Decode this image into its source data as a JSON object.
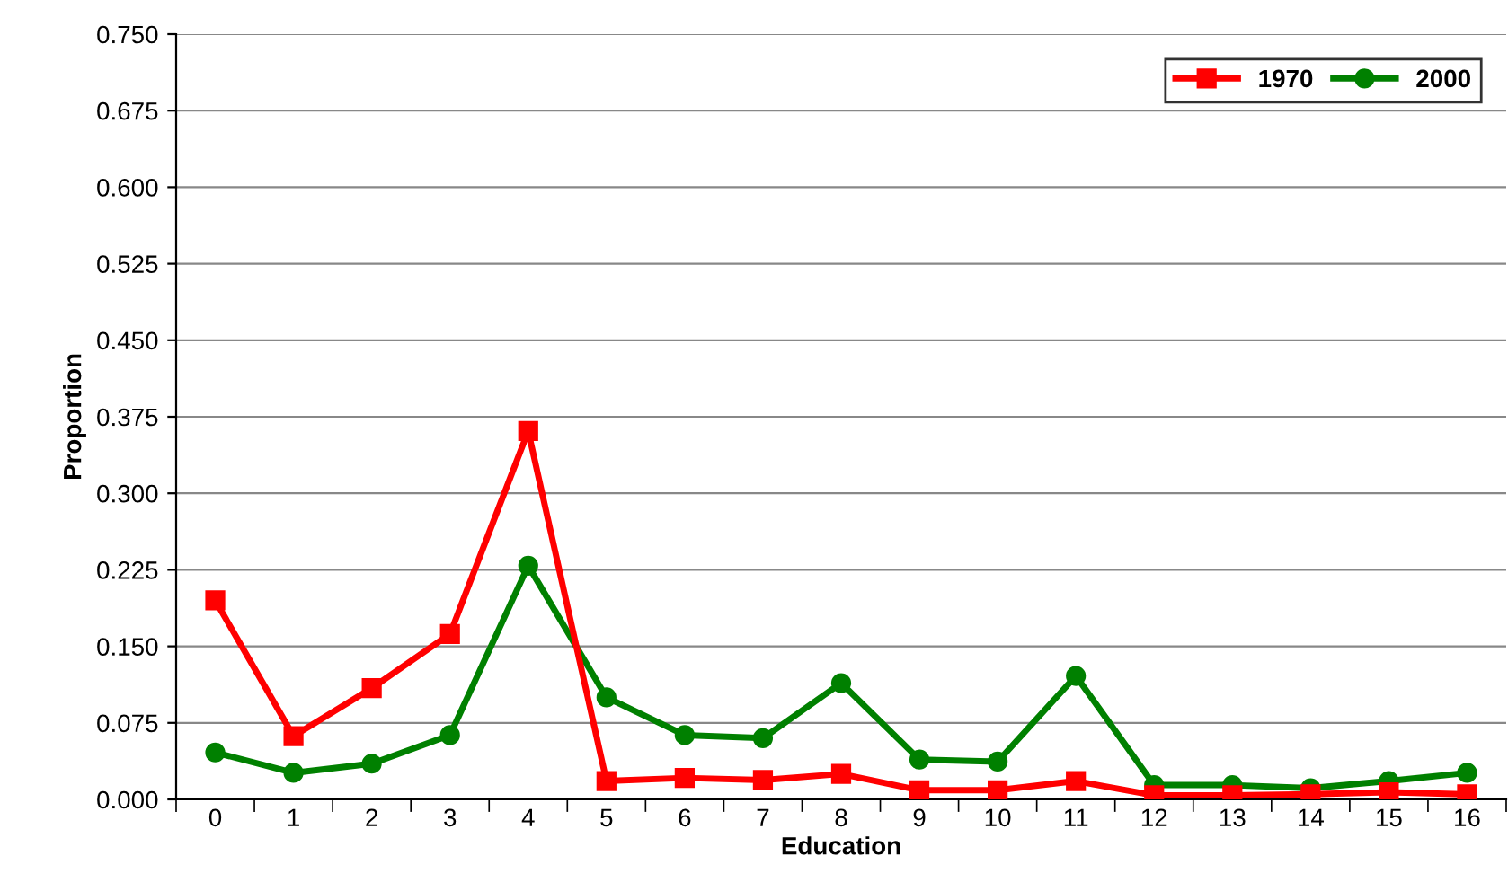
{
  "chart_data": {
    "type": "line",
    "xlabel": "Education",
    "ylabel": "Proportion",
    "categories": [
      "0",
      "1",
      "2",
      "3",
      "4",
      "5",
      "6",
      "7",
      "8",
      "9",
      "10",
      "11",
      "12",
      "13",
      "14",
      "15",
      "16"
    ],
    "series": [
      {
        "name": "1970",
        "color": "#ff0000",
        "marker": "square",
        "values": [
          0.195,
          0.062,
          0.109,
          0.162,
          0.361,
          0.018,
          0.021,
          0.019,
          0.025,
          0.009,
          0.009,
          0.018,
          0.004,
          0.004,
          0.005,
          0.007,
          0.005
        ]
      },
      {
        "name": "2000",
        "color": "#008000",
        "marker": "circle",
        "values": [
          0.046,
          0.026,
          0.035,
          0.063,
          0.229,
          0.1,
          0.063,
          0.06,
          0.114,
          0.039,
          0.037,
          0.121,
          0.014,
          0.014,
          0.011,
          0.018,
          0.026
        ]
      }
    ],
    "ylim": [
      0,
      0.75
    ],
    "yticks": [
      {
        "value": 0,
        "label": "0.000"
      },
      {
        "value": 0.075,
        "label": "0.075"
      },
      {
        "value": 0.15,
        "label": "0.150"
      },
      {
        "value": 0.225,
        "label": "0.225"
      },
      {
        "value": 0.3,
        "label": "0.300"
      },
      {
        "value": 0.375,
        "label": "0.375"
      },
      {
        "value": 0.45,
        "label": "0.450"
      },
      {
        "value": 0.525,
        "label": "0.525"
      },
      {
        "value": 0.6,
        "label": "0.600"
      },
      {
        "value": 0.675,
        "label": "0.675"
      },
      {
        "value": 0.75,
        "label": "0.750"
      }
    ],
    "grid": "y",
    "legend": "top right",
    "line_style": "solid"
  }
}
